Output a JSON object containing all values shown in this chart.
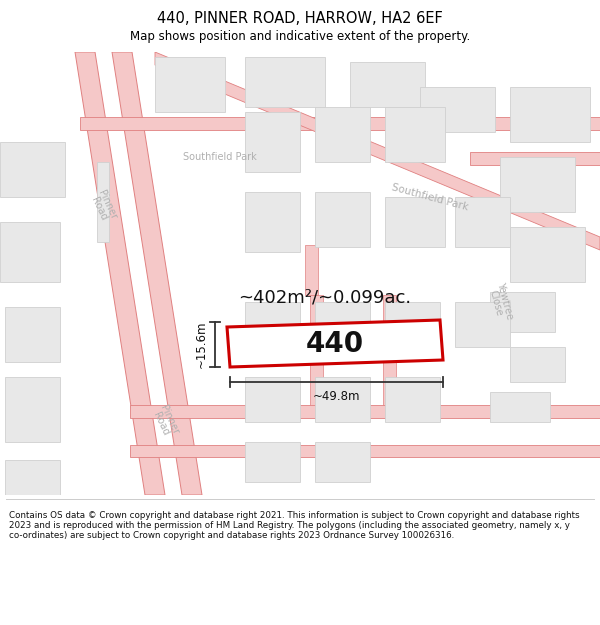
{
  "title": "440, PINNER ROAD, HARROW, HA2 6EF",
  "subtitle": "Map shows position and indicative extent of the property.",
  "area_text": "~402m²/~0.099ac.",
  "property_number": "440",
  "dim_width": "~49.8m",
  "dim_height": "~15.6m",
  "footer_text": "Contains OS data © Crown copyright and database right 2021. This information is subject to Crown copyright and database rights 2023 and is reproduced with the permission of HM Land Registry. The polygons (including the associated geometry, namely x, y co-ordinates) are subject to Crown copyright and database rights 2023 Ordnance Survey 100026316.",
  "bg_color": "#ffffff",
  "map_bg": "#ffffff",
  "road_fill": "#f5c8c8",
  "road_edge": "#e08080",
  "building_fill": "#e8e8e8",
  "building_edge": "#d0d0d0",
  "property_edge": "#cc0000",
  "property_fill": "#ffffff",
  "dim_color": "#333333",
  "label_color": "#b0b0b0",
  "title_fontsize": 10.5,
  "subtitle_fontsize": 8.5,
  "area_fontsize": 13,
  "prop_fontsize": 20,
  "dim_fontsize": 8.5,
  "road_label_fontsize": 7,
  "footer_fontsize": 6.3
}
